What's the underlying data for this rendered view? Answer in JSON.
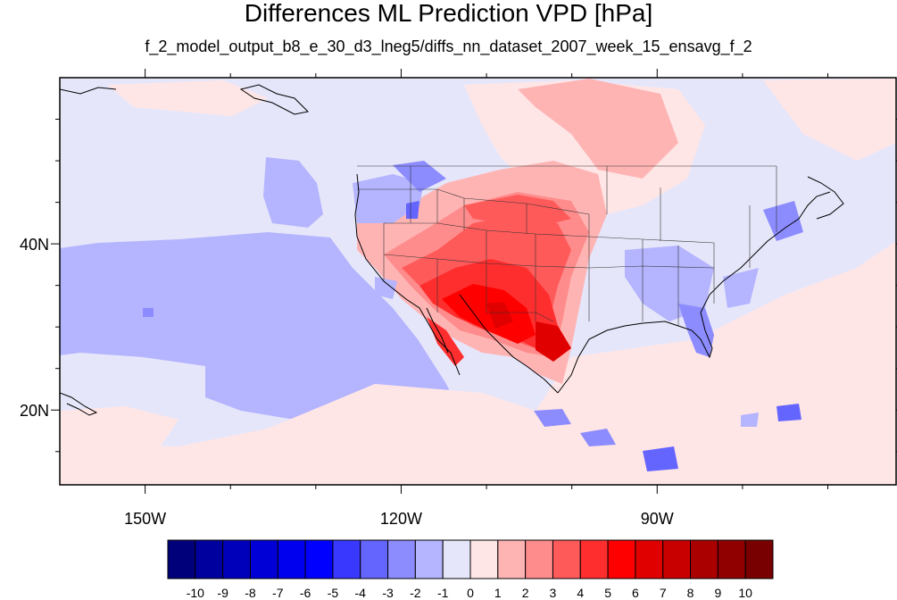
{
  "title": "Differences ML Prediction VPD [hPa]",
  "subtitle": "f_2_model_output_b8_e_30_d3_lneg5/diffs_nn_dataset_2007_week_15_ensavg_f_2",
  "map": {
    "lon_range": [
      -160,
      -62
    ],
    "lat_range": [
      11,
      60
    ],
    "lon_ticks": [
      {
        "value": -150,
        "label": "150W"
      },
      {
        "value": -120,
        "label": "120W"
      },
      {
        "value": -90,
        "label": "90W"
      }
    ],
    "lat_ticks": [
      {
        "value": 40,
        "label": "40N"
      },
      {
        "value": 20,
        "label": "20N"
      }
    ],
    "ocean_value": -2,
    "background_value": -1
  },
  "colorbar": {
    "levels": [
      -10,
      -9,
      -8,
      -7,
      -6,
      -5,
      -4,
      -3,
      -2,
      -1,
      0,
      1,
      2,
      3,
      4,
      5,
      6,
      7,
      8,
      9,
      10
    ],
    "labels": [
      "-10",
      "-9",
      "-8",
      "-7",
      "-6",
      "-5",
      "-4",
      "-3",
      "-2",
      "-1",
      "0",
      "1",
      "2",
      "3",
      "4",
      "5",
      "6",
      "7",
      "8",
      "9",
      "10"
    ],
    "colors": [
      "#00007a",
      "#00009e",
      "#0000bb",
      "#0000d6",
      "#0000ee",
      "#0000ff",
      "#3838ff",
      "#6464ff",
      "#8c8cff",
      "#b4b4ff",
      "#e6e6fa",
      "#ffe6e6",
      "#ffb4b4",
      "#ff8c8c",
      "#ff5a5a",
      "#ff2e2e",
      "#ff0000",
      "#e00000",
      "#c80000",
      "#aa0000",
      "#900000",
      "#780000"
    ]
  }
}
